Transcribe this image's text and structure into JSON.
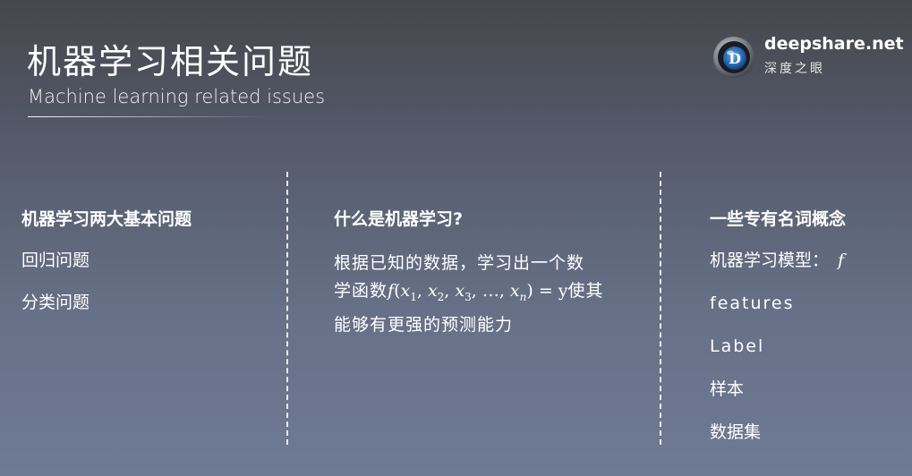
{
  "header": {
    "title": "机器学习相关问题",
    "subtitle": "Machine learning related issues"
  },
  "logo": {
    "name": "deepshare.net",
    "sub": "深度之眼",
    "mark_letter": "D"
  },
  "left_column": {
    "heading": "机器学习两大基本问题",
    "items": [
      "回归问题",
      "分类问题"
    ]
  },
  "middle_column": {
    "heading": "什么是机器学习?",
    "text_line1": "根据已知的数据，学习出一个数",
    "text_line2_prefix": "学函数",
    "formula": {
      "f": "f",
      "open": "(",
      "x1": "x",
      "s1": "1",
      "x2": "x",
      "s2": "2",
      "x3": "x",
      "s3": "3",
      "dots": ", …, ",
      "xn": "x",
      "sn": "n",
      "close": ") = y"
    },
    "text_line2_suffix": "使其",
    "text_line3": "能够有更强的预测能力"
  },
  "right_column": {
    "heading": "一些专有名词概念",
    "model_label": "机器学习模型：",
    "model_symbol": "f",
    "items": [
      "features",
      "Label",
      "样本",
      "数据集"
    ]
  },
  "colors": {
    "background_top": "#46474c",
    "background_bottom": "#6f7a95",
    "text": "#ffffff"
  }
}
